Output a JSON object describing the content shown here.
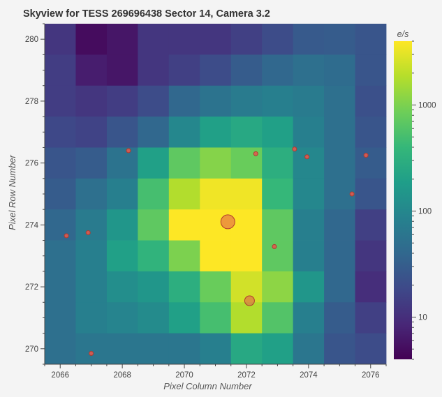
{
  "chart_data": {
    "type": "heatmap",
    "title": "Skyview for TESS 269696438 Sector 14, Camera 3.2",
    "xlabel": "Pixel Column Number",
    "ylabel": "Pixel Row Number",
    "x_ticks": [
      "2066",
      "2068",
      "2070",
      "2072",
      "2074",
      "2076"
    ],
    "y_ticks": [
      "270",
      "272",
      "274",
      "276",
      "278",
      "280"
    ],
    "xlim": [
      2065.5,
      2076.5
    ],
    "ylim": [
      269.5,
      280.5
    ],
    "colorbar": {
      "label": "e/s",
      "scale": "log",
      "range": [
        4,
        4000
      ],
      "ticks": [
        "10",
        "100",
        "1000"
      ],
      "colormap": [
        "#440154",
        "#482878",
        "#3e4989",
        "#31688e",
        "#26828e",
        "#1f9e89",
        "#35b779",
        "#6ece58",
        "#b5de2b",
        "#fde725"
      ]
    },
    "rows_y": [
      280,
      279,
      278,
      277,
      276,
      275,
      274,
      273,
      272,
      271,
      270
    ],
    "cols_x": [
      2066,
      2067,
      2068,
      2069,
      2070,
      2071,
      2072,
      2073,
      2074,
      2075,
      2076
    ],
    "flux": [
      [
        12,
        5,
        6,
        12,
        12,
        12,
        15,
        20,
        28,
        30,
        25
      ],
      [
        14,
        7,
        6,
        12,
        15,
        20,
        30,
        40,
        50,
        45,
        25
      ],
      [
        14,
        12,
        14,
        20,
        40,
        55,
        70,
        80,
        70,
        50,
        22
      ],
      [
        18,
        16,
        25,
        40,
        100,
        200,
        250,
        200,
        80,
        50,
        25
      ],
      [
        25,
        30,
        55,
        200,
        700,
        1100,
        800,
        300,
        100,
        50,
        30
      ],
      [
        30,
        50,
        80,
        500,
        1800,
        3500,
        3500,
        400,
        100,
        50,
        25
      ],
      [
        40,
        70,
        150,
        700,
        4000,
        4000,
        4000,
        700,
        80,
        40,
        15
      ],
      [
        50,
        80,
        200,
        350,
        1000,
        4000,
        4000,
        700,
        80,
        40,
        12
      ],
      [
        50,
        80,
        120,
        150,
        300,
        800,
        2500,
        1200,
        150,
        40,
        10
      ],
      [
        50,
        80,
        90,
        110,
        200,
        500,
        1800,
        600,
        80,
        30,
        15
      ],
      [
        50,
        60,
        60,
        60,
        60,
        80,
        250,
        200,
        60,
        25,
        20
      ]
    ],
    "stars": [
      {
        "x": 2066.2,
        "y": 273.65,
        "size": "small"
      },
      {
        "x": 2066.9,
        "y": 273.75,
        "size": "small"
      },
      {
        "x": 2067.0,
        "y": 269.85,
        "size": "small"
      },
      {
        "x": 2068.2,
        "y": 276.4,
        "size": "small"
      },
      {
        "x": 2071.4,
        "y": 274.1,
        "size": "large"
      },
      {
        "x": 2072.1,
        "y": 271.55,
        "size": "medium"
      },
      {
        "x": 2072.3,
        "y": 276.3,
        "size": "small"
      },
      {
        "x": 2072.9,
        "y": 273.3,
        "size": "small"
      },
      {
        "x": 2073.55,
        "y": 276.45,
        "size": "small"
      },
      {
        "x": 2073.95,
        "y": 276.2,
        "size": "small"
      },
      {
        "x": 2075.4,
        "y": 275.0,
        "size": "small"
      },
      {
        "x": 2075.85,
        "y": 276.25,
        "size": "small"
      }
    ],
    "star_color": "#e05a4f",
    "grid": false,
    "legend": "none"
  }
}
